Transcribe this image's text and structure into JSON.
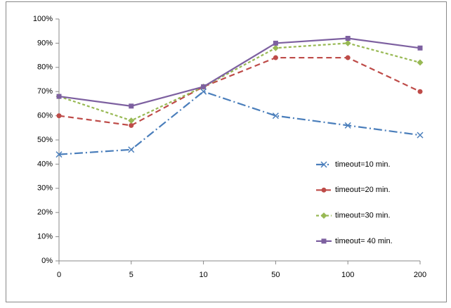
{
  "chart_data": {
    "type": "line",
    "categories": [
      "0",
      "5",
      "10",
      "50",
      "100",
      "200"
    ],
    "series": [
      {
        "name": "timeout=10 min.",
        "color": "#4a7ebb",
        "marker": "x",
        "dash": "12 4 2 4",
        "values": [
          44,
          46,
          70,
          60,
          56,
          52
        ]
      },
      {
        "name": "timeout=20 min.",
        "color": "#be4b48",
        "marker": "circle",
        "dash": "8 5",
        "values": [
          60,
          56,
          72,
          84,
          84,
          70
        ]
      },
      {
        "name": "timeout=30 min.",
        "color": "#98b954",
        "marker": "diamond",
        "dash": "4 3",
        "values": [
          68,
          58,
          72,
          88,
          90,
          82
        ]
      },
      {
        "name": "timeout= 40 min.",
        "color": "#7d60a0",
        "marker": "square",
        "dash": "none",
        "values": [
          68,
          64,
          72,
          90,
          92,
          88
        ]
      }
    ],
    "ylim": [
      0,
      100
    ],
    "yticks": [
      {
        "value": 0,
        "label": "0%"
      },
      {
        "value": 10,
        "label": "10%"
      },
      {
        "value": 20,
        "label": "20%"
      },
      {
        "value": 30,
        "label": "30%"
      },
      {
        "value": 40,
        "label": "40%"
      },
      {
        "value": 50,
        "label": "50%"
      },
      {
        "value": 60,
        "label": "60%"
      },
      {
        "value": 70,
        "label": "70%"
      },
      {
        "value": 80,
        "label": "80%"
      },
      {
        "value": 90,
        "label": "90%"
      },
      {
        "value": 100,
        "label": "100%"
      }
    ],
    "grid": false,
    "legend": "right"
  }
}
